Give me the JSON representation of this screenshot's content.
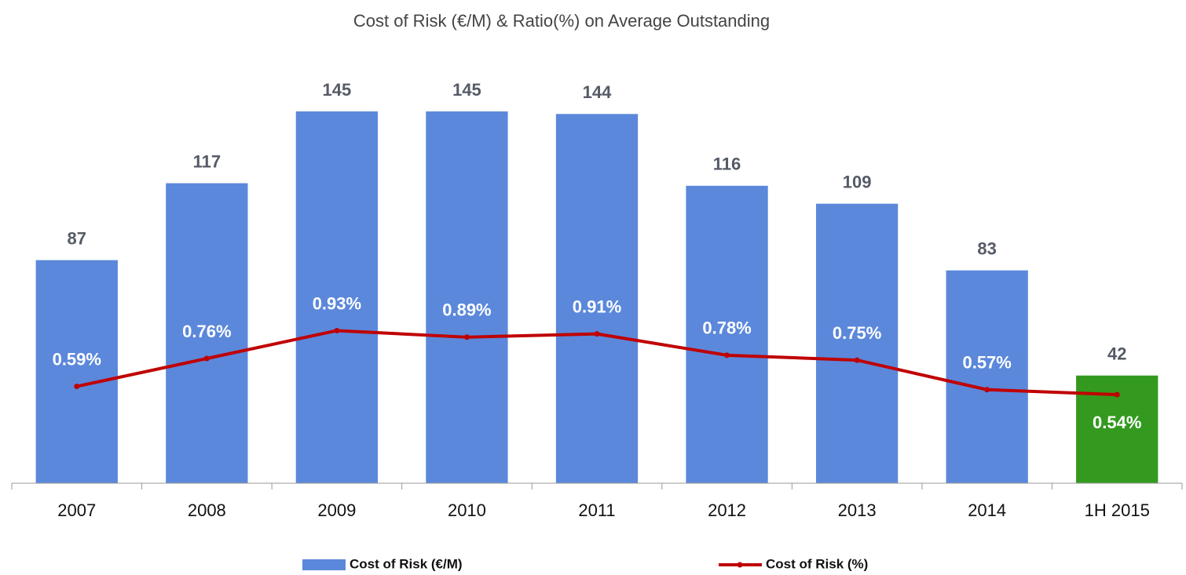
{
  "chart_data": {
    "type": "bar",
    "title": "Cost of Risk (€/M) & Ratio(%) on Average Outstanding",
    "categories": [
      "2007",
      "2008",
      "2009",
      "2010",
      "2011",
      "2012",
      "2013",
      "2014",
      "1H 2015"
    ],
    "series": [
      {
        "name": "Cost of Risk (€/M)",
        "type": "bar",
        "color": "#5b88db",
        "point_colors": [
          "#5b88db",
          "#5b88db",
          "#5b88db",
          "#5b88db",
          "#5b88db",
          "#5b88db",
          "#5b88db",
          "#5b88db",
          "#339a1f"
        ],
        "values": [
          87,
          117,
          145,
          145,
          144,
          116,
          109,
          83,
          42
        ]
      },
      {
        "name": "Cost of Risk (%)",
        "type": "line",
        "axis": "y2",
        "color": "#c00000",
        "values": [
          0.59,
          0.76,
          0.93,
          0.89,
          0.91,
          0.78,
          0.75,
          0.57,
          0.54
        ],
        "value_labels": [
          "0.59%",
          "0.76%",
          "0.93%",
          "0.89%",
          "0.91%",
          "0.78%",
          "0.75%",
          "0.57%",
          "0.54%"
        ]
      }
    ],
    "ylim": [
      0,
      160
    ],
    "y2lim": [
      0,
      2.5
    ],
    "legend": "bottom"
  }
}
